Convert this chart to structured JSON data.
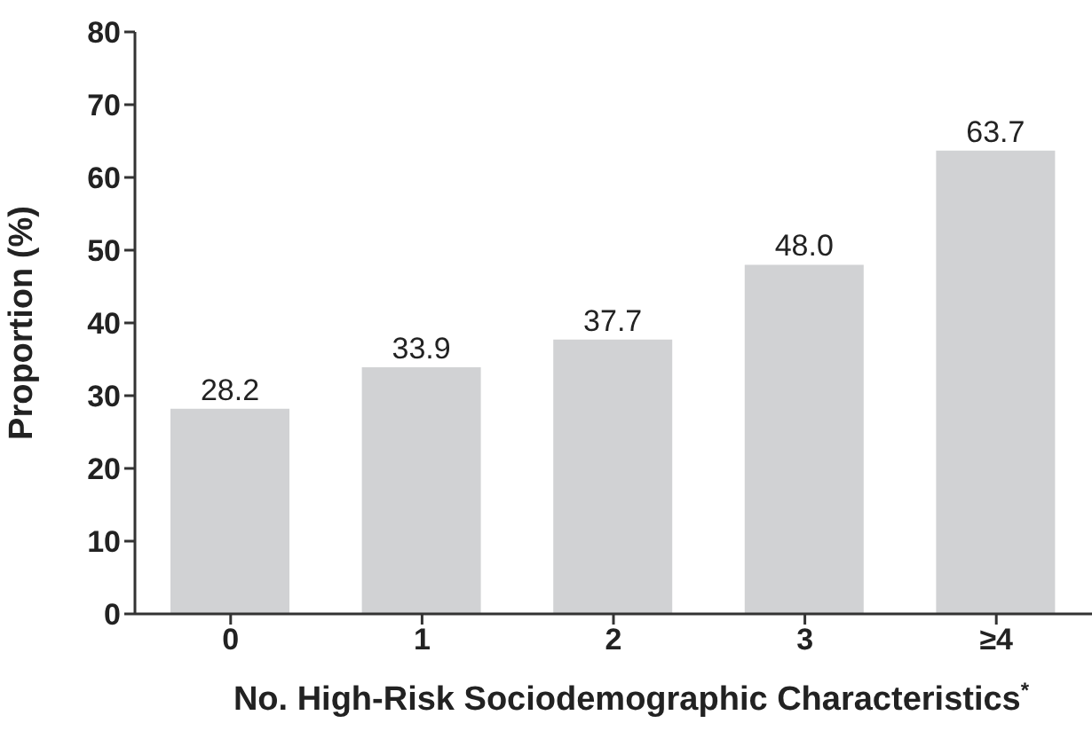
{
  "chart_data": {
    "type": "bar",
    "xlabel": "No. High-Risk Sociodemographic Characteristics$^{*}$",
    "ylabel": "Proportion  (%)",
    "categories": [
      "0",
      "1",
      "2",
      "3",
      "≥4"
    ],
    "values": [
      28.2,
      33.9,
      37.7,
      48.0,
      63.7
    ],
    "color": "#d1d2d4",
    "ylim": [
      0,
      80
    ],
    "yticks": [
      0,
      10,
      20,
      30,
      40,
      50,
      60,
      70,
      80
    ],
    "value_labels": [
      "28.2",
      "33.9",
      "37.7",
      "48.0",
      "63.7"
    ],
    "grid": false
  }
}
